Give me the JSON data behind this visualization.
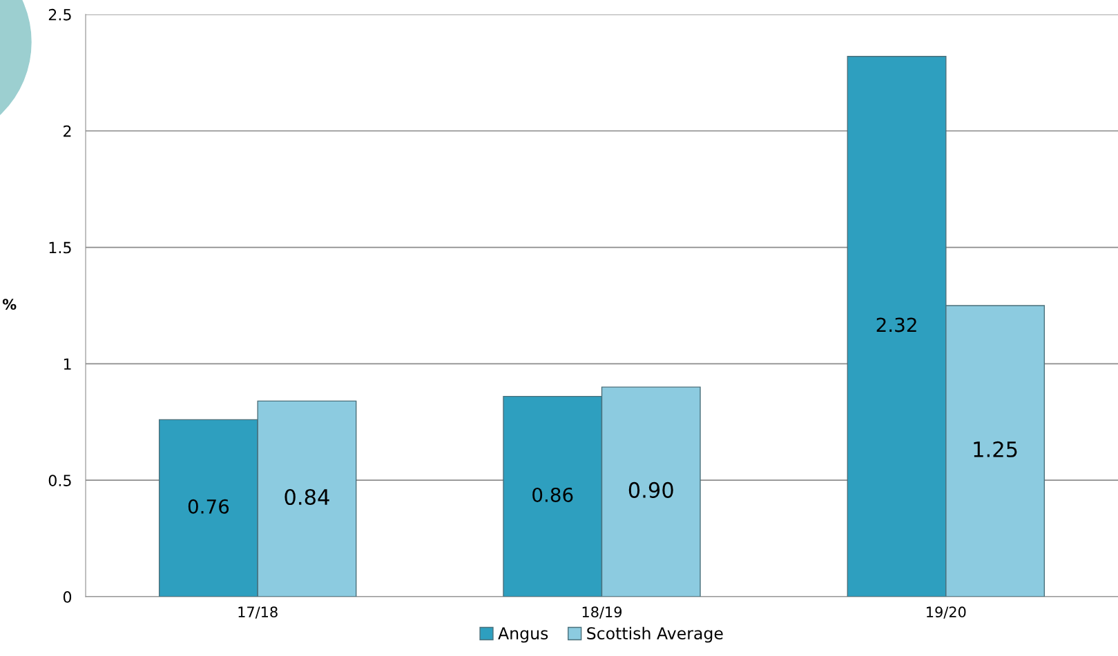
{
  "chart_data": {
    "type": "bar",
    "ylabel": "%",
    "categories": [
      "17/18",
      "18/19",
      "19/20"
    ],
    "series": [
      {
        "name": "Angus",
        "color": "#2e9fbf",
        "values": [
          0.76,
          0.86,
          2.32
        ],
        "value_labels": [
          "0.76",
          "0.86",
          "2.32"
        ]
      },
      {
        "name": "Scottish Average",
        "color": "#8ccbe0",
        "values": [
          0.84,
          0.9,
          1.25
        ],
        "value_labels": [
          "0.84",
          "0.90",
          "1.25"
        ]
      }
    ],
    "ylim": [
      0,
      2.5
    ],
    "yticks": [
      0,
      0.5,
      1,
      1.5,
      2,
      2.5
    ],
    "grid": "y",
    "legend": "bottom"
  }
}
